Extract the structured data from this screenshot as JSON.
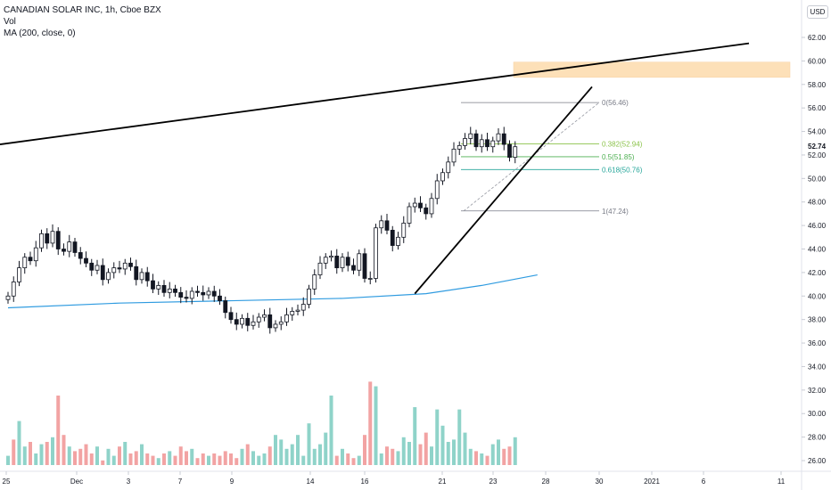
{
  "legend": {
    "title": "CANADIAN SOLAR INC, 1h, Cboe BZX",
    "vol": "Vol",
    "ma": "MA (200, close, 0)"
  },
  "currency": "USD",
  "colors": {
    "up": "#ffffff",
    "down": "#131722",
    "vol_up": "#8fd3c9",
    "vol_down": "#f2a3a3",
    "ma": "#2f9be0",
    "fib_0": "#787b86",
    "fib_382": "#8bc34a",
    "fib_5": "#4caf50",
    "fib_618": "#26a69a",
    "fib_1": "#787b86",
    "zone": "#fde0b8",
    "trend": "#000000"
  },
  "chart_data": {
    "type": "candlestick",
    "y_axis": {
      "ticks": [
        "62.00",
        "60.00",
        "58.00",
        "56.00",
        "54.00",
        "52.00",
        "50.00",
        "48.00",
        "46.00",
        "44.00",
        "42.00",
        "40.00",
        "38.00",
        "36.00",
        "34.00",
        "32.00",
        "30.00",
        "28.00",
        "26.00"
      ],
      "last_price": "52.74"
    },
    "x_axis": {
      "ticks": [
        "25",
        "Dec",
        "3",
        "7",
        "9",
        "14",
        "16",
        "21",
        "23",
        "28",
        "30",
        "2021",
        "6",
        "11"
      ]
    },
    "fib_levels": [
      {
        "label": "0(56.46)",
        "price": 56.46,
        "color_key": "fib_0"
      },
      {
        "label": "0.382(52.94)",
        "price": 52.94,
        "color_key": "fib_382"
      },
      {
        "label": "0.5(51.85)",
        "price": 51.85,
        "color_key": "fib_5"
      },
      {
        "label": "0.618(50.76)",
        "price": 50.76,
        "color_key": "fib_618"
      },
      {
        "label": "1(47.24)",
        "price": 47.24,
        "color_key": "fib_1"
      }
    ],
    "closes": [
      40.0,
      41.2,
      42.4,
      43.3,
      43.0,
      44.1,
      45.3,
      44.5,
      45.5,
      44.0,
      43.8,
      44.6,
      43.7,
      43.2,
      42.8,
      42.2,
      42.6,
      41.4,
      42.0,
      42.4,
      42.3,
      42.8,
      42.5,
      41.4,
      42.0,
      41.3,
      40.6,
      40.9,
      40.3,
      40.6,
      40.3,
      39.9,
      39.8,
      40.4,
      40.3,
      40.1,
      40.4,
      40.0,
      39.6,
      38.6,
      38.0,
      37.6,
      38.1,
      37.5,
      37.8,
      38.2,
      38.4,
      37.3,
      37.6,
      37.8,
      38.4,
      38.7,
      38.8,
      39.3,
      40.6,
      41.8,
      42.8,
      43.3,
      43.4,
      42.4,
      43.3,
      42.6,
      42.2,
      43.6,
      41.5,
      41.5,
      45.8,
      46.4,
      45.6,
      44.3,
      45.0,
      46.2,
      47.6,
      47.9,
      47.5,
      47.0,
      48.3,
      49.8,
      50.5,
      51.4,
      52.5,
      52.8,
      53.4,
      53.8,
      52.7,
      53.3,
      52.7,
      53.2,
      53.8,
      52.9,
      51.8,
      52.7
    ],
    "ma_200": [
      {
        "bar": 0,
        "value": 39.0
      },
      {
        "bar": 20,
        "value": 39.4
      },
      {
        "bar": 40,
        "value": 39.6
      },
      {
        "bar": 60,
        "value": 39.8
      },
      {
        "bar": 75,
        "value": 40.2
      },
      {
        "bar": 85,
        "value": 40.9
      },
      {
        "bar": 95,
        "value": 41.8
      }
    ],
    "volume_scale": "26.00–34.00 axis band",
    "volume": [
      4,
      11,
      19,
      8,
      10,
      5,
      9,
      10,
      12,
      30,
      13,
      8,
      6,
      7,
      9,
      5,
      8,
      2,
      7,
      4,
      8,
      10,
      5,
      6,
      9,
      5,
      4,
      3,
      5,
      6,
      4,
      8,
      6,
      7,
      3,
      5,
      4,
      5,
      4,
      6,
      5,
      3,
      7,
      9,
      6,
      4,
      5,
      8,
      13,
      11,
      7,
      9,
      13,
      4,
      18,
      7,
      9,
      14,
      30,
      4,
      7,
      5,
      3,
      4,
      13,
      36,
      34,
      5,
      8,
      7,
      6,
      12,
      10,
      25,
      9,
      14,
      8,
      24,
      17,
      10,
      11,
      24,
      14,
      7,
      6,
      5,
      4,
      9,
      11,
      7,
      8,
      12
    ],
    "volume_up": [
      1,
      0,
      1,
      1,
      0,
      1,
      1,
      0,
      1,
      0,
      0,
      1,
      0,
      0,
      0,
      0,
      1,
      0,
      1,
      1,
      0,
      1,
      0,
      0,
      1,
      0,
      0,
      1,
      0,
      1,
      0,
      0,
      0,
      1,
      0,
      0,
      1,
      0,
      0,
      0,
      0,
      0,
      1,
      0,
      1,
      1,
      1,
      0,
      1,
      1,
      1,
      1,
      1,
      1,
      1,
      1,
      1,
      1,
      1,
      0,
      1,
      0,
      0,
      1,
      0,
      0,
      1,
      1,
      0,
      0,
      1,
      1,
      1,
      1,
      0,
      0,
      1,
      1,
      1,
      1,
      1,
      1,
      1,
      1,
      0,
      1,
      0,
      1,
      1,
      0,
      0,
      1
    ],
    "trendlines": [
      {
        "name": "long-resistance",
        "from": {
          "bar": 0,
          "price": 52.9
        },
        "to": {
          "bar": 140,
          "price": 61.5
        }
      },
      {
        "name": "rising-support",
        "from": {
          "bar": 73,
          "price": 40.2
        },
        "to": {
          "bar": 108,
          "price": 57.8
        }
      }
    ],
    "zone": {
      "label": "",
      "price_low": 58.6,
      "price_high": 59.9
    }
  }
}
